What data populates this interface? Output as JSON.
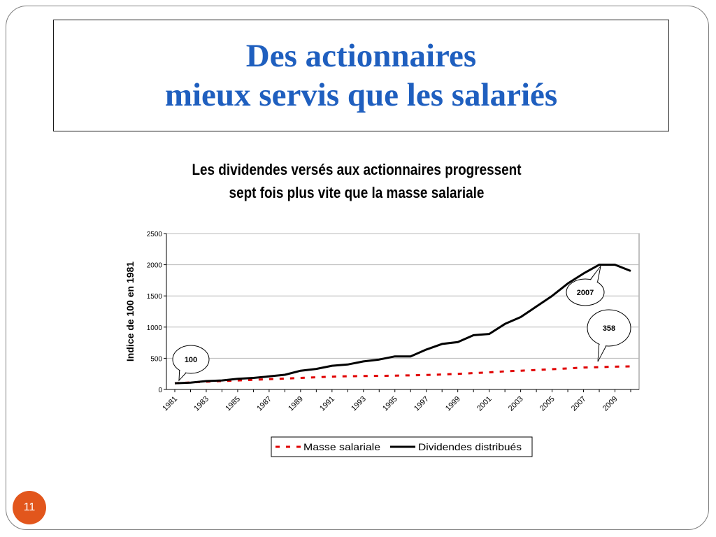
{
  "slide": {
    "title_line1": "Des actionnaires",
    "title_line2": "mieux servis que les salariés",
    "page_number": "11",
    "title_color": "#1f5fbf",
    "badge_color": "#e2561c"
  },
  "chart_data": {
    "type": "line",
    "title": "Les dividendes versés aux actionnaires progressent sept fois plus vite que la masse salariale",
    "title_lines": [
      "Les dividendes versés aux actionnaires progressent",
      "sept fois plus vite que la masse salariale"
    ],
    "ylabel": "Indice de 100 en 1981",
    "xlabel": "",
    "ylim": [
      0,
      2500
    ],
    "yticks": [
      0,
      500,
      1000,
      1500,
      2000,
      2500
    ],
    "x": [
      1981,
      1982,
      1983,
      1984,
      1985,
      1986,
      1987,
      1988,
      1989,
      1990,
      1991,
      1992,
      1993,
      1994,
      1995,
      1996,
      1997,
      1998,
      1999,
      2000,
      2001,
      2002,
      2003,
      2004,
      2005,
      2006,
      2007,
      2008,
      2009,
      2010
    ],
    "xtick_labels": [
      "1981",
      "1983",
      "1985",
      "1987",
      "1989",
      "1991",
      "1993",
      "1995",
      "1997",
      "1999",
      "2001",
      "2003",
      "2005",
      "2007",
      "2009"
    ],
    "grid": true,
    "legend_position": "bottom",
    "series": [
      {
        "name": "Masse salariale",
        "style": "dashed",
        "color": "#e00000",
        "values": [
          100,
          112,
          125,
          135,
          145,
          155,
          165,
          175,
          185,
          195,
          205,
          212,
          215,
          218,
          222,
          226,
          232,
          240,
          250,
          262,
          275,
          290,
          300,
          312,
          325,
          338,
          352,
          358,
          365,
          370
        ]
      },
      {
        "name": "Dividendes distribués",
        "style": "solid",
        "color": "#000000",
        "values": [
          100,
          110,
          135,
          145,
          170,
          185,
          210,
          235,
          300,
          330,
          380,
          400,
          450,
          480,
          530,
          530,
          640,
          730,
          760,
          870,
          890,
          1050,
          1160,
          1330,
          1500,
          1700,
          1860,
          2000,
          2000,
          1900
        ]
      }
    ],
    "annotations": [
      {
        "text": "100",
        "series": "Dividendes distribués"
      },
      {
        "text": "2007",
        "series": "Dividendes distribués"
      },
      {
        "text": "358",
        "series": "Masse salariale"
      }
    ]
  }
}
